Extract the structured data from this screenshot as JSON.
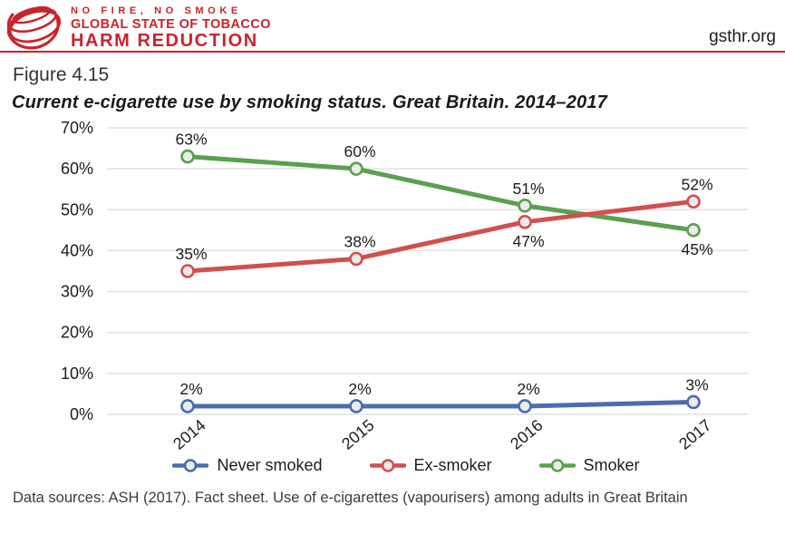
{
  "header": {
    "tagline": "NO FIRE, NO SMOKE",
    "org_line1": "GLOBAL STATE OF TOBACCO",
    "org_line2": "HARM REDUCTION",
    "site": "gsthr.org",
    "brand_red": "#c9242b"
  },
  "figure": {
    "label": "Figure 4.15",
    "title": "Current e-cigarette use by smoking status. Great Britain. 2014–2017"
  },
  "chart_data": {
    "type": "line",
    "title": "Current e-cigarette use by smoking status. Great Britain. 2014–2017",
    "x": [
      "2014",
      "2015",
      "2016",
      "2017"
    ],
    "series": [
      {
        "name": "Never smoked",
        "color": "#4a6cb0",
        "values": [
          2,
          2,
          2,
          3
        ],
        "label_positions": [
          "above",
          "above",
          "above",
          "above"
        ]
      },
      {
        "name": "Ex-smoker",
        "color": "#d14f4d",
        "values": [
          35,
          38,
          47,
          52
        ],
        "label_positions": [
          "above",
          "above",
          "below",
          "above"
        ]
      },
      {
        "name": "Smoker",
        "color": "#5ba04f",
        "values": [
          63,
          60,
          51,
          45
        ],
        "label_positions": [
          "above",
          "above",
          "above",
          "below"
        ]
      }
    ],
    "ylim": [
      0,
      70
    ],
    "ytick_values": [
      0,
      10,
      20,
      30,
      40,
      50,
      60,
      70
    ],
    "yticks": [
      "0%",
      "10%",
      "20%",
      "30%",
      "40%",
      "50%",
      "60%",
      "70%"
    ],
    "value_suffix": "%",
    "grid": "horizontal",
    "gridline_color": "#e2e2e2",
    "marker": "open-circle",
    "marker_fill": "#ebebeb",
    "legend_position": "bottom"
  },
  "footer": {
    "text": "Data sources: ASH (2017). Fact sheet. Use of e-cigarettes (vapourisers) among adults in Great Britain"
  }
}
